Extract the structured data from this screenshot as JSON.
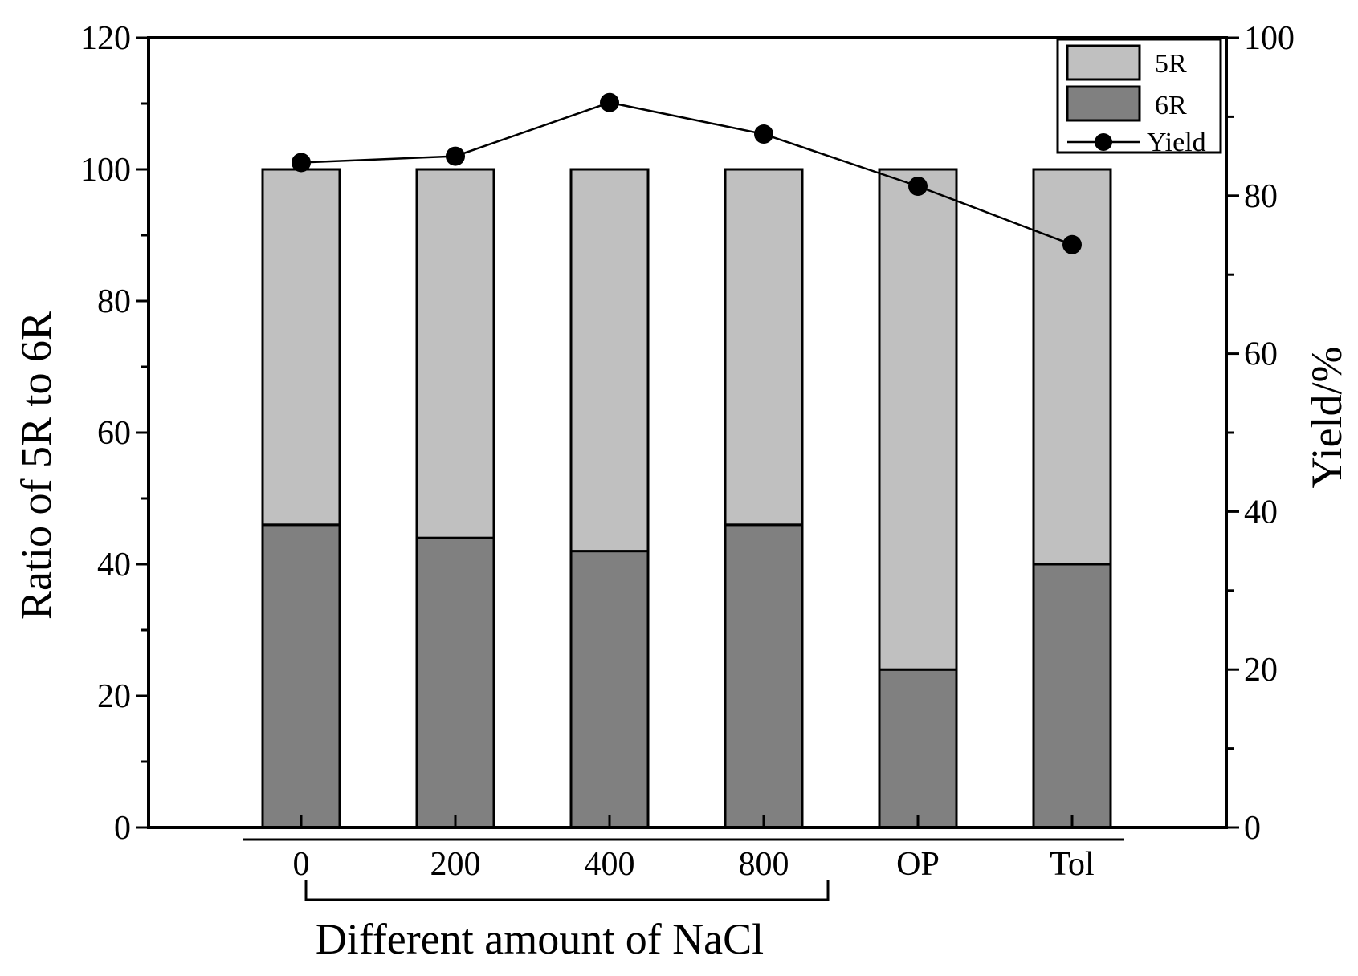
{
  "chart_data": {
    "type": "bar",
    "stacked": true,
    "dual_axis": true,
    "categories": [
      "0",
      "200",
      "400",
      "800",
      "OP",
      "Tol"
    ],
    "series": [
      {
        "name": "6R",
        "axis": "left",
        "color": "#808080",
        "values": [
          46,
          44,
          42,
          46,
          24,
          40
        ]
      },
      {
        "name": "5R",
        "axis": "left",
        "color": "#c0c0c0",
        "values": [
          54,
          56,
          58,
          54,
          76,
          60
        ]
      },
      {
        "name": "Yield",
        "axis": "right",
        "type": "line",
        "marker": "circle",
        "color": "#000000",
        "values": [
          84.2,
          85,
          91.8,
          87.8,
          81.2,
          73.8
        ]
      }
    ],
    "ylabel": "Ratio of 5R to 6R",
    "ylim": [
      0,
      120
    ],
    "yticks": [
      "0",
      "20",
      "40",
      "60",
      "80",
      "100",
      "120"
    ],
    "y2label": "Yield/%",
    "y2lim": [
      0,
      100
    ],
    "y2ticks": [
      "0",
      "20",
      "40",
      "60",
      "80",
      "100"
    ],
    "group_label": "Different amount of NaCl",
    "group_categories": [
      "0",
      "200",
      "400",
      "800"
    ],
    "legend_position": "top-right",
    "grid": false
  }
}
